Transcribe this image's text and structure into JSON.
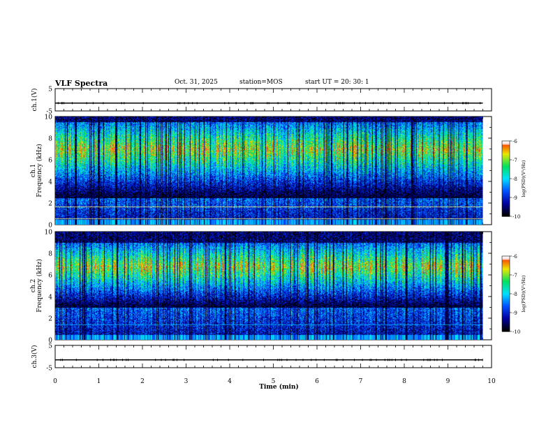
{
  "header": {
    "title": "VLF Spectra",
    "date": "Oct. 31, 2025",
    "station": "station=MOS",
    "start": "start  UT  =   20: 30: 1"
  },
  "chart_data": [
    {
      "type": "line",
      "name": "ch1-waveform",
      "ylabel": "ch.1(V)",
      "ylim": [
        -5,
        5
      ],
      "yticks": [
        "5",
        "-5"
      ],
      "baseline": -1.5,
      "xlim": [
        0,
        10
      ]
    },
    {
      "type": "heatmap",
      "name": "ch1-spectrogram",
      "ylabel_channel": "ch.1",
      "ylabel": "Frequency (kHz)",
      "ylim": [
        0,
        10
      ],
      "yticks": [
        "0",
        "2",
        "4",
        "6",
        "8",
        "10"
      ],
      "xlim": [
        0,
        9.8
      ],
      "band_khz": [
        2.5,
        9.5
      ],
      "peak_khz": 7.0,
      "colorbar": {
        "label": "log(PSD)(V²/Hz)",
        "range": [
          -10,
          -6
        ],
        "ticks": [
          "-6",
          "-7",
          "-8",
          "-9",
          "-10"
        ]
      }
    },
    {
      "type": "heatmap",
      "name": "ch2-spectrogram",
      "ylabel_channel": "ch.2",
      "ylabel": "Frequency (kHz)",
      "ylim": [
        0,
        10
      ],
      "yticks": [
        "0",
        "2",
        "4",
        "6",
        "8",
        "10"
      ],
      "xlim": [
        0,
        9.8
      ],
      "band_khz": [
        3.0,
        9.0
      ],
      "peak_khz": 6.8,
      "colorbar": {
        "label": "log(PSD)(V²/Hz)",
        "range": [
          -10,
          -6
        ],
        "ticks": [
          "-6",
          "-7",
          "-8",
          "-9",
          "-10"
        ]
      }
    },
    {
      "type": "line",
      "name": "ch3-waveform",
      "ylabel": "ch.3(V)",
      "ylim": [
        -5,
        5
      ],
      "yticks": [
        "5",
        "-5"
      ],
      "baseline": -1.5,
      "xlim": [
        0,
        10
      ]
    }
  ],
  "xaxis": {
    "label": "Time  (min)",
    "ticks": [
      "0",
      "1",
      "2",
      "3",
      "4",
      "5",
      "6",
      "7",
      "8",
      "9",
      "10"
    ]
  },
  "colors": {
    "colormap": [
      "#000000",
      "#0000a0",
      "#0050ff",
      "#00e0ff",
      "#00e060",
      "#e8e800",
      "#ff2000",
      "#ffffff"
    ]
  }
}
